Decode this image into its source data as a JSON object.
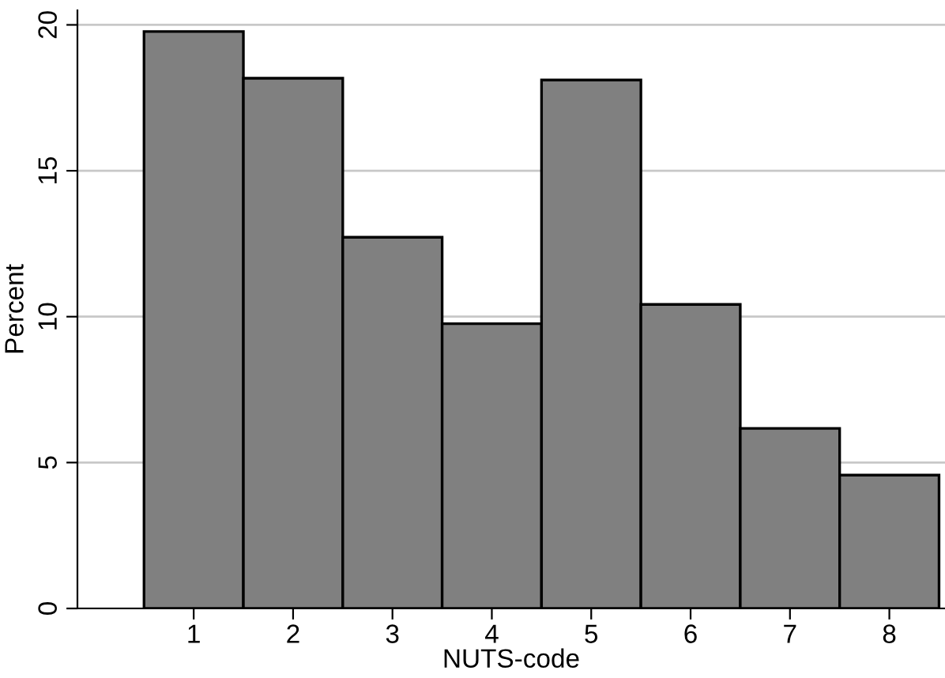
{
  "chart_data": {
    "type": "histogram",
    "xlabel": "NUTS-code",
    "ylabel": "Percent",
    "bins": [
      0.5,
      1.5,
      2.5,
      3.5,
      4.5,
      5.5,
      6.5,
      7.5,
      8.5
    ],
    "values": [
      19.77,
      18.17,
      12.72,
      9.76,
      18.11,
      10.42,
      6.17,
      4.57
    ],
    "color": "#808080",
    "xlim": [
      -0.17,
      8.56
    ],
    "xticks": [
      1,
      2,
      3,
      4,
      5,
      6,
      7,
      8
    ],
    "ylim": [
      0,
      20.5
    ],
    "yticks": [
      0,
      5,
      10,
      15,
      20
    ],
    "grid": "y",
    "legend": false
  }
}
